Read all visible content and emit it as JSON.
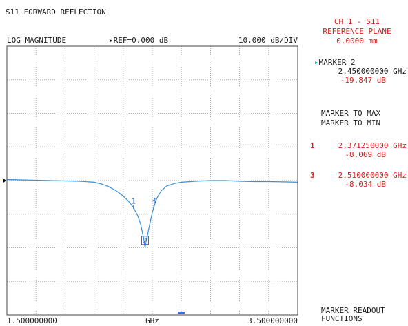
{
  "header": {
    "title": "S11 FORWARD REFLECTION",
    "format": "LOG MAGNITUDE",
    "reference": "REF=0.000 dB",
    "scale": "10.000 dB/DIV"
  },
  "footer": {
    "start": "1.500000000",
    "unit": "GHz",
    "stop": "3.500000000"
  },
  "side_panel": {
    "channel": "CH 1 - S11",
    "ref_plane_label": "REFERENCE PLANE",
    "ref_plane_value": "0.0000 mm",
    "active_marker": {
      "label": "MARKER 2",
      "freq": "2.450000000 GHz",
      "value": "-19.847 dB"
    },
    "menu": {
      "marker_to_max": "MARKER TO MAX",
      "marker_to_min": "MARKER TO MIN",
      "readout_functions_1": "MARKER READOUT",
      "readout_functions_2": "FUNCTIONS"
    },
    "markers": [
      {
        "num": "1",
        "freq": "2.371250000 GHz",
        "value": "-8.069 dB"
      },
      {
        "num": "3",
        "freq": "2.510000000 GHz",
        "value": "-8.034 dB"
      }
    ]
  },
  "colors": {
    "trace": "#3a8fd6",
    "readout": "#d81e1e",
    "active_marker": "#19a7d8",
    "marker_label": "#2f5fbf",
    "grid": "#9a9a9a"
  },
  "chart_data": {
    "type": "line",
    "x_unit": "GHz",
    "y_unit": "dB",
    "xlim": [
      1.5,
      3.5
    ],
    "ylim": [
      -40,
      40
    ],
    "x_divisions": 10,
    "y_divisions": 8,
    "grid": true,
    "reference_level": 0.0,
    "series": [
      {
        "x": [
          1.5,
          1.6,
          1.7,
          1.8,
          1.9,
          2.0,
          2.1,
          2.15,
          2.2,
          2.25,
          2.3,
          2.34,
          2.371,
          2.4,
          2.42,
          2.44,
          2.45,
          2.46,
          2.48,
          2.5,
          2.51,
          2.53,
          2.56,
          2.6,
          2.65,
          2.7,
          2.8,
          2.9,
          3.0,
          3.1,
          3.2,
          3.3,
          3.4,
          3.5
        ],
        "y": [
          0.3,
          0.2,
          0.1,
          0.0,
          -0.1,
          -0.2,
          -0.5,
          -1.0,
          -1.8,
          -3.0,
          -4.6,
          -6.3,
          -8.07,
          -10.5,
          -13.0,
          -17.0,
          -19.85,
          -17.5,
          -13.5,
          -9.5,
          -8.03,
          -5.4,
          -3.1,
          -1.6,
          -0.9,
          -0.5,
          -0.2,
          0.0,
          0.0,
          -0.2,
          -0.3,
          -0.3,
          -0.4,
          -0.5
        ]
      }
    ],
    "markers": [
      {
        "num": "1",
        "x": 2.37125,
        "y": -8.069
      },
      {
        "num": "2",
        "x": 2.45,
        "y": -19.847
      },
      {
        "num": "3",
        "x": 2.51,
        "y": -8.034
      }
    ]
  }
}
